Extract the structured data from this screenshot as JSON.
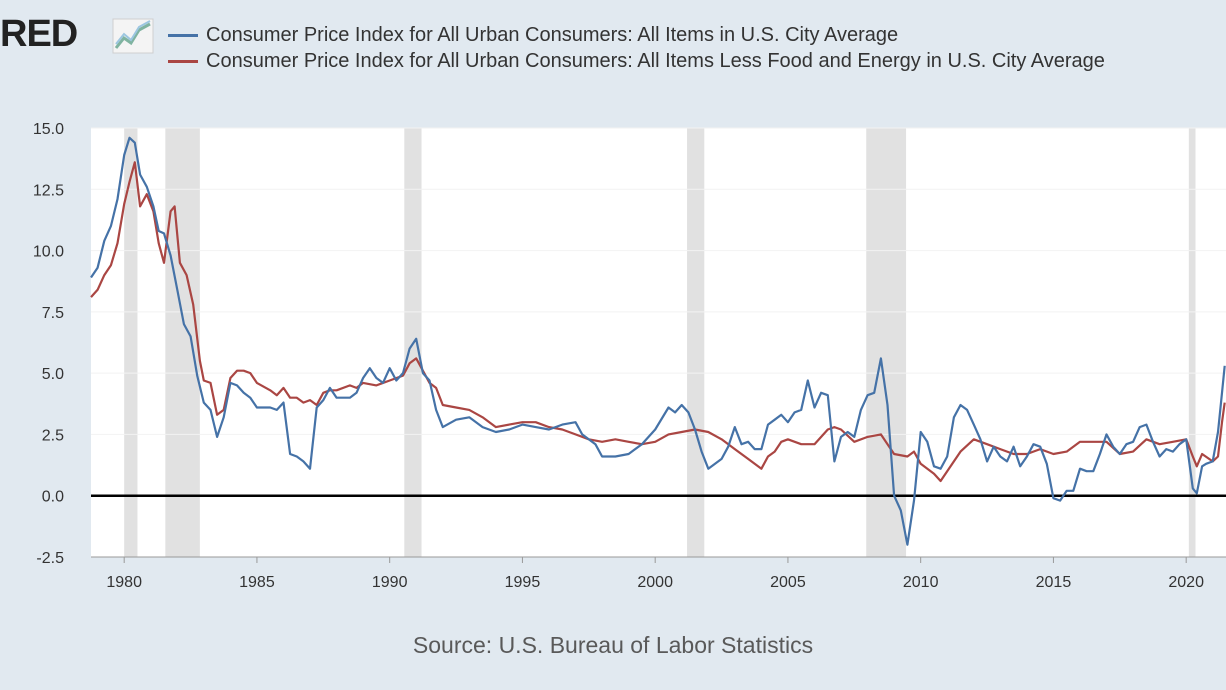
{
  "logo_text": "RED",
  "colors": {
    "series1": "#4572a7",
    "series2": "#aa4643",
    "recession": "#e1e1e1",
    "plot_bg": "#ffffff",
    "page_bg": "#e1e9f0"
  },
  "source_text": "Source: U.S. Bureau of Labor Statistics",
  "chart_data": {
    "type": "line",
    "title": "",
    "xlabel": "",
    "ylabel": "",
    "xlim": [
      1978.75,
      2021.5
    ],
    "ylim": [
      -2.5,
      15
    ],
    "y_ticks": [
      -2.5,
      0,
      2.5,
      5,
      7.5,
      10,
      12.5,
      15
    ],
    "y_tick_labels": [
      "-2.5",
      "0.0",
      "2.5",
      "5.0",
      "7.5",
      "10.0",
      "12.5",
      "15.0"
    ],
    "x_ticks": [
      1980,
      1985,
      1990,
      1995,
      2000,
      2005,
      2010,
      2015,
      2020
    ],
    "x_tick_labels": [
      "1980",
      "1985",
      "1990",
      "1995",
      "2000",
      "2005",
      "2010",
      "2015",
      "2020"
    ],
    "zero_line": true,
    "legend_position": "top",
    "recessions": [
      [
        1980.0,
        1980.5
      ],
      [
        1981.55,
        1982.85
      ],
      [
        1990.55,
        1991.2
      ],
      [
        2001.2,
        2001.85
      ],
      [
        2007.95,
        2009.45
      ],
      [
        2020.1,
        2020.35
      ]
    ],
    "series": [
      {
        "name": "Consumer Price Index for All Urban Consumers: All Items in U.S. City Average",
        "color": "#4572a7",
        "points": [
          [
            1978.75,
            8.9
          ],
          [
            1979.0,
            9.3
          ],
          [
            1979.25,
            10.4
          ],
          [
            1979.5,
            11.0
          ],
          [
            1979.75,
            12.1
          ],
          [
            1980.0,
            13.9
          ],
          [
            1980.2,
            14.6
          ],
          [
            1980.4,
            14.4
          ],
          [
            1980.6,
            13.1
          ],
          [
            1980.85,
            12.6
          ],
          [
            1981.1,
            11.8
          ],
          [
            1981.3,
            10.8
          ],
          [
            1981.5,
            10.7
          ],
          [
            1981.75,
            9.8
          ],
          [
            1982.0,
            8.4
          ],
          [
            1982.25,
            7.0
          ],
          [
            1982.5,
            6.5
          ],
          [
            1982.75,
            4.9
          ],
          [
            1983.0,
            3.8
          ],
          [
            1983.25,
            3.5
          ],
          [
            1983.5,
            2.4
          ],
          [
            1983.75,
            3.2
          ],
          [
            1984.0,
            4.6
          ],
          [
            1984.25,
            4.5
          ],
          [
            1984.5,
            4.2
          ],
          [
            1984.75,
            4.0
          ],
          [
            1985.0,
            3.6
          ],
          [
            1985.5,
            3.6
          ],
          [
            1985.75,
            3.5
          ],
          [
            1986.0,
            3.8
          ],
          [
            1986.25,
            1.7
          ],
          [
            1986.5,
            1.6
          ],
          [
            1986.75,
            1.4
          ],
          [
            1987.0,
            1.1
          ],
          [
            1987.25,
            3.6
          ],
          [
            1987.5,
            3.9
          ],
          [
            1987.75,
            4.4
          ],
          [
            1988.0,
            4.0
          ],
          [
            1988.5,
            4.0
          ],
          [
            1988.75,
            4.2
          ],
          [
            1989.0,
            4.8
          ],
          [
            1989.25,
            5.2
          ],
          [
            1989.5,
            4.8
          ],
          [
            1989.75,
            4.6
          ],
          [
            1990.0,
            5.2
          ],
          [
            1990.25,
            4.7
          ],
          [
            1990.5,
            5.0
          ],
          [
            1990.75,
            6.0
          ],
          [
            1991.0,
            6.4
          ],
          [
            1991.25,
            5.0
          ],
          [
            1991.5,
            4.7
          ],
          [
            1991.75,
            3.5
          ],
          [
            1992.0,
            2.8
          ],
          [
            1992.5,
            3.1
          ],
          [
            1993.0,
            3.2
          ],
          [
            1993.5,
            2.8
          ],
          [
            1994.0,
            2.6
          ],
          [
            1994.5,
            2.7
          ],
          [
            1995.0,
            2.9
          ],
          [
            1995.5,
            2.8
          ],
          [
            1996.0,
            2.7
          ],
          [
            1996.5,
            2.9
          ],
          [
            1997.0,
            3.0
          ],
          [
            1997.25,
            2.5
          ],
          [
            1997.75,
            2.1
          ],
          [
            1998.0,
            1.6
          ],
          [
            1998.5,
            1.6
          ],
          [
            1999.0,
            1.7
          ],
          [
            1999.5,
            2.1
          ],
          [
            2000.0,
            2.7
          ],
          [
            2000.5,
            3.6
          ],
          [
            2000.75,
            3.4
          ],
          [
            2001.0,
            3.7
          ],
          [
            2001.25,
            3.4
          ],
          [
            2001.5,
            2.7
          ],
          [
            2001.75,
            1.8
          ],
          [
            2002.0,
            1.1
          ],
          [
            2002.5,
            1.5
          ],
          [
            2002.75,
            2.0
          ],
          [
            2003.0,
            2.8
          ],
          [
            2003.25,
            2.1
          ],
          [
            2003.5,
            2.2
          ],
          [
            2003.75,
            1.9
          ],
          [
            2004.0,
            1.9
          ],
          [
            2004.25,
            2.9
          ],
          [
            2004.5,
            3.1
          ],
          [
            2004.75,
            3.3
          ],
          [
            2005.0,
            3.0
          ],
          [
            2005.25,
            3.4
          ],
          [
            2005.5,
            3.5
          ],
          [
            2005.75,
            4.7
          ],
          [
            2006.0,
            3.6
          ],
          [
            2006.25,
            4.2
          ],
          [
            2006.5,
            4.1
          ],
          [
            2006.75,
            1.4
          ],
          [
            2007.0,
            2.4
          ],
          [
            2007.25,
            2.6
          ],
          [
            2007.5,
            2.4
          ],
          [
            2007.75,
            3.5
          ],
          [
            2008.0,
            4.1
          ],
          [
            2008.25,
            4.2
          ],
          [
            2008.5,
            5.6
          ],
          [
            2008.75,
            3.7
          ],
          [
            2009.0,
            0.0
          ],
          [
            2009.25,
            -0.6
          ],
          [
            2009.5,
            -2.0
          ],
          [
            2009.75,
            -0.2
          ],
          [
            2010.0,
            2.6
          ],
          [
            2010.25,
            2.2
          ],
          [
            2010.5,
            1.2
          ],
          [
            2010.75,
            1.1
          ],
          [
            2011.0,
            1.6
          ],
          [
            2011.25,
            3.2
          ],
          [
            2011.5,
            3.7
          ],
          [
            2011.75,
            3.5
          ],
          [
            2012.0,
            2.9
          ],
          [
            2012.25,
            2.3
          ],
          [
            2012.5,
            1.4
          ],
          [
            2012.75,
            2.0
          ],
          [
            2013.0,
            1.6
          ],
          [
            2013.25,
            1.4
          ],
          [
            2013.5,
            2.0
          ],
          [
            2013.75,
            1.2
          ],
          [
            2014.0,
            1.6
          ],
          [
            2014.25,
            2.1
          ],
          [
            2014.5,
            2.0
          ],
          [
            2014.75,
            1.3
          ],
          [
            2015.0,
            -0.1
          ],
          [
            2015.25,
            -0.2
          ],
          [
            2015.5,
            0.2
          ],
          [
            2015.75,
            0.2
          ],
          [
            2016.0,
            1.1
          ],
          [
            2016.25,
            1.0
          ],
          [
            2016.5,
            1.0
          ],
          [
            2016.75,
            1.7
          ],
          [
            2017.0,
            2.5
          ],
          [
            2017.25,
            2.0
          ],
          [
            2017.5,
            1.7
          ],
          [
            2017.75,
            2.1
          ],
          [
            2018.0,
            2.2
          ],
          [
            2018.25,
            2.8
          ],
          [
            2018.5,
            2.9
          ],
          [
            2018.75,
            2.2
          ],
          [
            2019.0,
            1.6
          ],
          [
            2019.25,
            1.9
          ],
          [
            2019.5,
            1.8
          ],
          [
            2019.75,
            2.1
          ],
          [
            2020.0,
            2.3
          ],
          [
            2020.25,
            0.3
          ],
          [
            2020.4,
            0.1
          ],
          [
            2020.6,
            1.2
          ],
          [
            2020.75,
            1.3
          ],
          [
            2021.0,
            1.4
          ],
          [
            2021.2,
            2.6
          ],
          [
            2021.35,
            4.2
          ],
          [
            2021.45,
            5.3
          ]
        ]
      },
      {
        "name": "Consumer Price Index for All Urban Consumers: All Items Less Food and Energy in U.S. City Average",
        "color": "#aa4643",
        "points": [
          [
            1978.75,
            8.1
          ],
          [
            1979.0,
            8.4
          ],
          [
            1979.25,
            9.0
          ],
          [
            1979.5,
            9.4
          ],
          [
            1979.75,
            10.3
          ],
          [
            1980.0,
            11.9
          ],
          [
            1980.2,
            12.8
          ],
          [
            1980.4,
            13.6
          ],
          [
            1980.6,
            11.8
          ],
          [
            1980.85,
            12.3
          ],
          [
            1981.1,
            11.6
          ],
          [
            1981.3,
            10.3
          ],
          [
            1981.5,
            9.5
          ],
          [
            1981.75,
            11.6
          ],
          [
            1981.9,
            11.8
          ],
          [
            1982.1,
            9.5
          ],
          [
            1982.35,
            9.0
          ],
          [
            1982.6,
            7.8
          ],
          [
            1982.85,
            5.5
          ],
          [
            1983.0,
            4.7
          ],
          [
            1983.25,
            4.6
          ],
          [
            1983.5,
            3.3
          ],
          [
            1983.75,
            3.5
          ],
          [
            1984.0,
            4.8
          ],
          [
            1984.25,
            5.1
          ],
          [
            1984.5,
            5.1
          ],
          [
            1984.75,
            5.0
          ],
          [
            1985.0,
            4.6
          ],
          [
            1985.5,
            4.3
          ],
          [
            1985.75,
            4.1
          ],
          [
            1986.0,
            4.4
          ],
          [
            1986.25,
            4.0
          ],
          [
            1986.5,
            4.0
          ],
          [
            1986.75,
            3.8
          ],
          [
            1987.0,
            3.9
          ],
          [
            1987.25,
            3.7
          ],
          [
            1987.5,
            4.2
          ],
          [
            1987.75,
            4.3
          ],
          [
            1988.0,
            4.3
          ],
          [
            1988.5,
            4.5
          ],
          [
            1988.75,
            4.4
          ],
          [
            1989.0,
            4.6
          ],
          [
            1989.5,
            4.5
          ],
          [
            1990.0,
            4.7
          ],
          [
            1990.5,
            4.9
          ],
          [
            1990.75,
            5.4
          ],
          [
            1991.0,
            5.6
          ],
          [
            1991.25,
            5.1
          ],
          [
            1991.5,
            4.6
          ],
          [
            1991.75,
            4.4
          ],
          [
            1992.0,
            3.7
          ],
          [
            1992.5,
            3.6
          ],
          [
            1993.0,
            3.5
          ],
          [
            1993.5,
            3.2
          ],
          [
            1994.0,
            2.8
          ],
          [
            1994.5,
            2.9
          ],
          [
            1995.0,
            3.0
          ],
          [
            1995.5,
            3.0
          ],
          [
            1996.0,
            2.8
          ],
          [
            1996.5,
            2.7
          ],
          [
            1997.0,
            2.5
          ],
          [
            1997.5,
            2.3
          ],
          [
            1998.0,
            2.2
          ],
          [
            1998.5,
            2.3
          ],
          [
            1999.0,
            2.2
          ],
          [
            1999.5,
            2.1
          ],
          [
            2000.0,
            2.2
          ],
          [
            2000.5,
            2.5
          ],
          [
            2001.0,
            2.6
          ],
          [
            2001.5,
            2.7
          ],
          [
            2002.0,
            2.6
          ],
          [
            2002.5,
            2.3
          ],
          [
            2003.0,
            1.9
          ],
          [
            2003.5,
            1.5
          ],
          [
            2004.0,
            1.1
          ],
          [
            2004.25,
            1.6
          ],
          [
            2004.5,
            1.8
          ],
          [
            2004.75,
            2.2
          ],
          [
            2005.0,
            2.3
          ],
          [
            2005.5,
            2.1
          ],
          [
            2006.0,
            2.1
          ],
          [
            2006.5,
            2.7
          ],
          [
            2006.75,
            2.8
          ],
          [
            2007.0,
            2.7
          ],
          [
            2007.5,
            2.2
          ],
          [
            2008.0,
            2.4
          ],
          [
            2008.5,
            2.5
          ],
          [
            2009.0,
            1.7
          ],
          [
            2009.5,
            1.6
          ],
          [
            2009.75,
            1.8
          ],
          [
            2010.0,
            1.3
          ],
          [
            2010.5,
            0.9
          ],
          [
            2010.75,
            0.6
          ],
          [
            2011.0,
            1.0
          ],
          [
            2011.5,
            1.8
          ],
          [
            2012.0,
            2.3
          ],
          [
            2012.5,
            2.1
          ],
          [
            2013.0,
            1.9
          ],
          [
            2013.5,
            1.7
          ],
          [
            2014.0,
            1.7
          ],
          [
            2014.5,
            1.9
          ],
          [
            2015.0,
            1.7
          ],
          [
            2015.5,
            1.8
          ],
          [
            2016.0,
            2.2
          ],
          [
            2016.5,
            2.2
          ],
          [
            2017.0,
            2.2
          ],
          [
            2017.5,
            1.7
          ],
          [
            2018.0,
            1.8
          ],
          [
            2018.5,
            2.3
          ],
          [
            2019.0,
            2.1
          ],
          [
            2019.5,
            2.2
          ],
          [
            2020.0,
            2.3
          ],
          [
            2020.25,
            1.6
          ],
          [
            2020.4,
            1.2
          ],
          [
            2020.6,
            1.7
          ],
          [
            2021.0,
            1.4
          ],
          [
            2021.2,
            1.6
          ],
          [
            2021.35,
            3.0
          ],
          [
            2021.45,
            3.8
          ]
        ]
      }
    ]
  }
}
